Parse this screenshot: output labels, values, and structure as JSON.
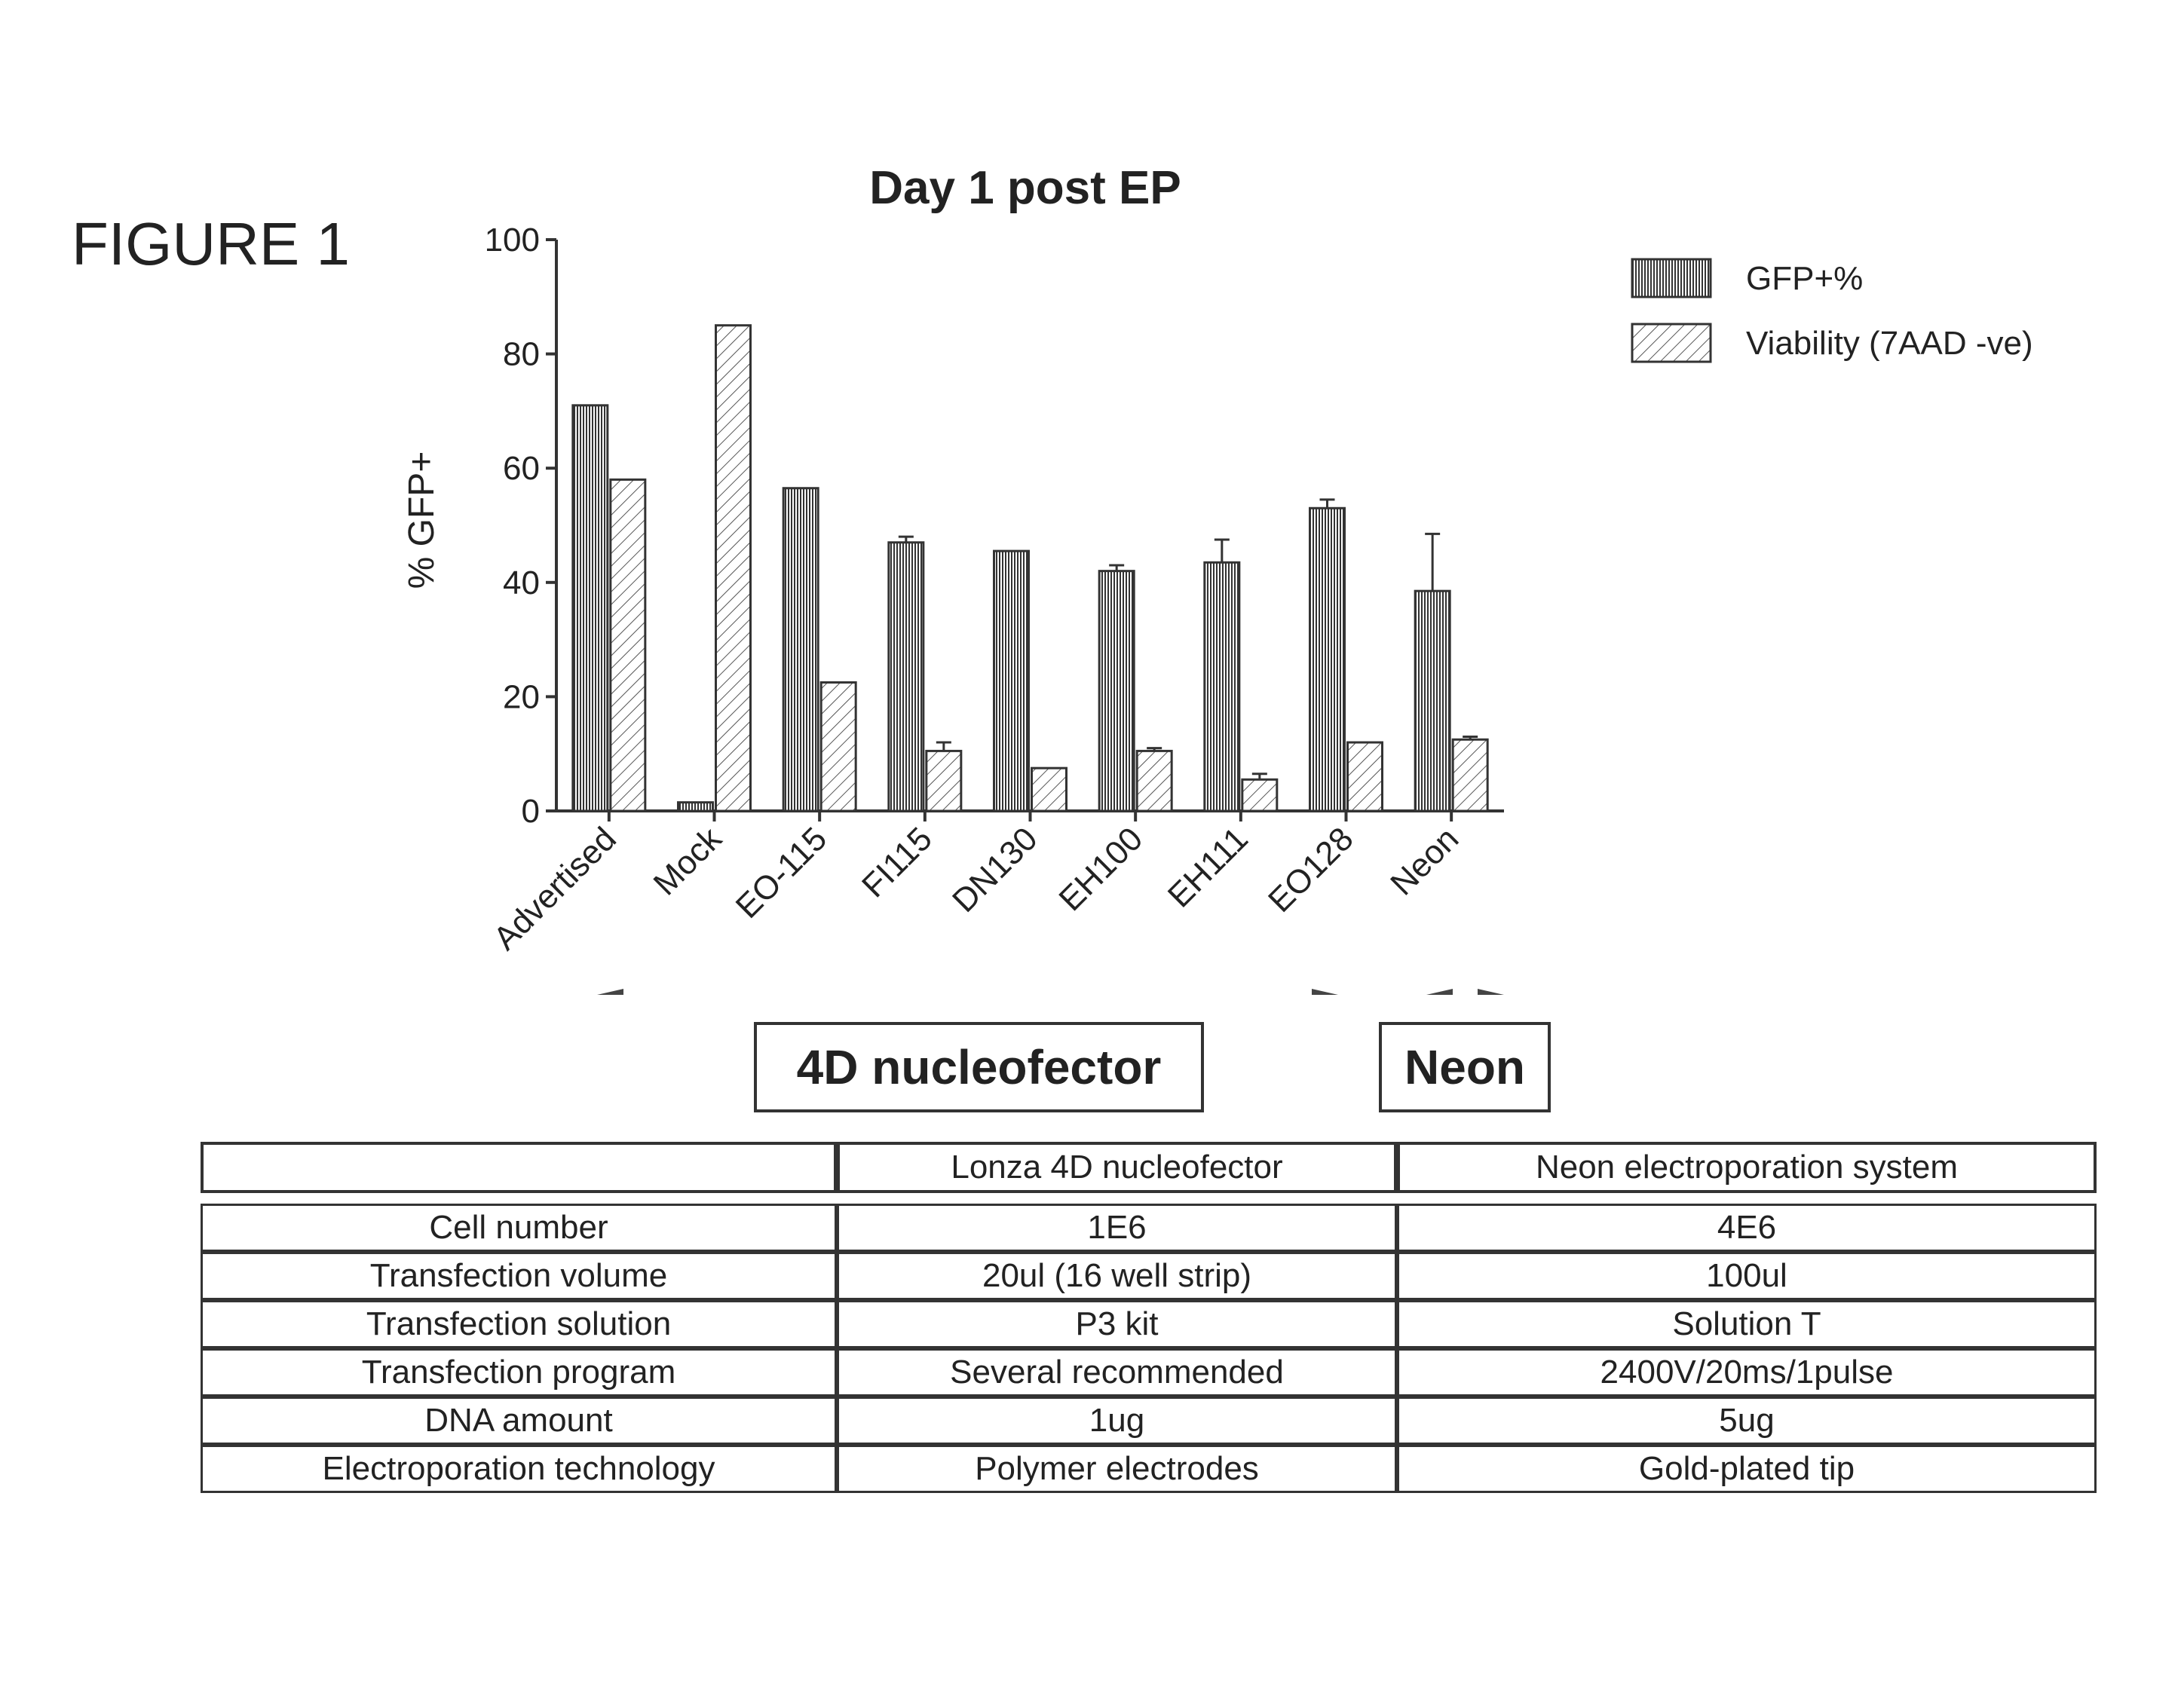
{
  "figure_label": "FIGURE 1",
  "chart_data": {
    "type": "bar",
    "title": "Day 1 post EP",
    "xlabel": "",
    "ylabel": "% GFP+",
    "ylim": [
      0,
      100
    ],
    "yticks": [
      0,
      20,
      40,
      60,
      80,
      100
    ],
    "categories": [
      "Advertised",
      "Mock",
      "EO-115",
      "FI115",
      "DN130",
      "EH100",
      "EH111",
      "EO128",
      "Neon"
    ],
    "series": [
      {
        "name": "GFP+%",
        "values": [
          71,
          1.5,
          56.5,
          47,
          45.5,
          42,
          43.5,
          53,
          38.5
        ],
        "errors": [
          0,
          0,
          0,
          1,
          0,
          1,
          4,
          1.5,
          10
        ]
      },
      {
        "name": "Viability (7AAD -ve)",
        "values": [
          58,
          85,
          22.5,
          10.5,
          7.5,
          10.5,
          5.5,
          12,
          12.5
        ],
        "errors": [
          0,
          0,
          0,
          1.5,
          0,
          0.5,
          1,
          0,
          0.5
        ]
      }
    ],
    "legend_position": "top-right",
    "grid": false
  },
  "groups": [
    {
      "label": "4D nucleofector"
    },
    {
      "label": "Neon"
    }
  ],
  "table": {
    "header": [
      "",
      "Lonza 4D nucleofector",
      "Neon electroporation system"
    ],
    "rows": [
      [
        "Cell number",
        "1E6",
        "4E6"
      ],
      [
        "Transfection volume",
        "20ul (16 well strip)",
        "100ul"
      ],
      [
        "Transfection solution",
        "P3 kit",
        "Solution T"
      ],
      [
        "Transfection program",
        "Several recommended",
        "2400V/20ms/1pulse"
      ],
      [
        "DNA amount",
        "1ug",
        "5ug"
      ],
      [
        "Electroporation technology",
        "Polymer electrodes",
        "Gold-plated tip"
      ]
    ]
  }
}
